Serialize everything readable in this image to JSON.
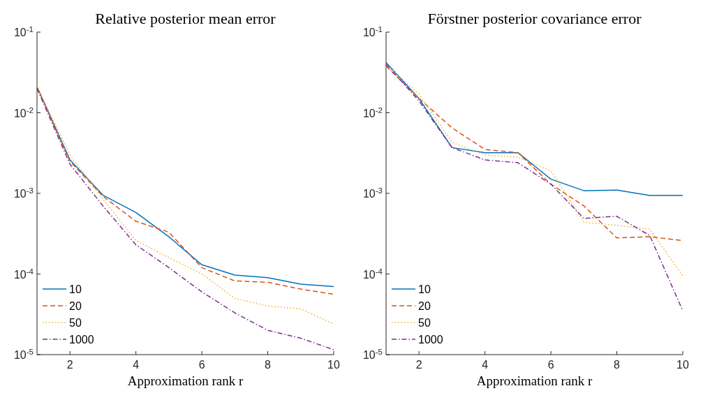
{
  "chart_data": [
    {
      "type": "line",
      "title": "Relative posterior mean error",
      "xlabel": "Approximation rank r",
      "x": [
        1,
        2,
        3,
        4,
        5,
        6,
        7,
        8,
        9,
        10
      ],
      "xlim": [
        1,
        10
      ],
      "xticks": [
        2,
        4,
        6,
        8,
        10
      ],
      "ylim": [
        1e-05,
        0.1
      ],
      "yticks": [
        {
          "value": 1e-05,
          "label": "10$^{-5}$"
        },
        {
          "value": 0.0001,
          "label": "10$^{-4}$"
        },
        {
          "value": 0.001,
          "label": "10$^{-3}$"
        },
        {
          "value": 0.01,
          "label": "10$^{-2}$"
        },
        {
          "value": 0.1,
          "label": "10$^{-1}$"
        }
      ],
      "log": true,
      "grid": false,
      "legend": "bottom left",
      "marker": "none",
      "series": [
        {
          "name": "10",
          "color": "#0072bd",
          "line_style": "solid",
          "values": [
            0.021,
            0.0026,
            0.00095,
            0.00058,
            0.00029,
            0.00013,
            9.7e-05,
            9e-05,
            7.5e-05,
            7e-05
          ]
        },
        {
          "name": "20",
          "color": "#d95319",
          "line_style": "dashed",
          "values": [
            0.021,
            0.0025,
            0.00092,
            0.00045,
            0.00033,
            0.00012,
            8.2e-05,
            7.9e-05,
            6.5e-05,
            5.6e-05
          ]
        },
        {
          "name": "50",
          "color": "#edb120",
          "line_style": "dotted",
          "values": [
            0.021,
            0.003,
            0.00085,
            0.00026,
            0.00016,
            0.0001,
            5e-05,
            4e-05,
            3.7e-05,
            2.4e-05
          ]
        },
        {
          "name": "1000",
          "color": "#7e2f8e",
          "line_style": "dashdot",
          "values": [
            0.02,
            0.0023,
            0.0007,
            0.00023,
            0.00012,
            6e-05,
            3.3e-05,
            2e-05,
            1.6e-05,
            1.15e-05
          ]
        }
      ]
    },
    {
      "type": "line",
      "title": "Förstner posterior covariance error",
      "xlabel": "Approximation rank r",
      "x": [
        1,
        2,
        3,
        4,
        5,
        6,
        7,
        8,
        9,
        10
      ],
      "xlim": [
        1,
        10
      ],
      "xticks": [
        2,
        4,
        6,
        8,
        10
      ],
      "ylim": [
        1e-05,
        0.1
      ],
      "yticks": [
        {
          "value": 1e-05,
          "label": "10$^{-5}$"
        },
        {
          "value": 0.0001,
          "label": "10$^{-4}$"
        },
        {
          "value": 0.001,
          "label": "10$^{-3}$"
        },
        {
          "value": 0.01,
          "label": "10$^{-2}$"
        },
        {
          "value": 0.1,
          "label": "10$^{-1}$"
        }
      ],
      "log": true,
      "grid": false,
      "legend": "bottom left",
      "marker": "none",
      "series": [
        {
          "name": "10",
          "color": "#0072bd",
          "line_style": "solid",
          "values": [
            0.042,
            0.015,
            0.0037,
            0.0032,
            0.0032,
            0.0015,
            0.00108,
            0.0011,
            0.00094,
            0.00094
          ]
        },
        {
          "name": "20",
          "color": "#d95319",
          "line_style": "dashed",
          "values": [
            0.038,
            0.015,
            0.0065,
            0.0035,
            0.0032,
            0.0013,
            0.0007,
            0.00028,
            0.00029,
            0.00026
          ]
        },
        {
          "name": "50",
          "color": "#edb120",
          "line_style": "dotted",
          "values": [
            0.04,
            0.017,
            0.0043,
            0.003,
            0.0028,
            0.0019,
            0.00044,
            0.0004,
            0.00036,
            9.5e-05
          ]
        },
        {
          "name": "1000",
          "color": "#7e2f8e",
          "line_style": "dashdot",
          "values": [
            0.04,
            0.014,
            0.0037,
            0.0026,
            0.0024,
            0.0013,
            0.00049,
            0.00052,
            0.0003,
            3.5e-05
          ]
        }
      ]
    }
  ]
}
